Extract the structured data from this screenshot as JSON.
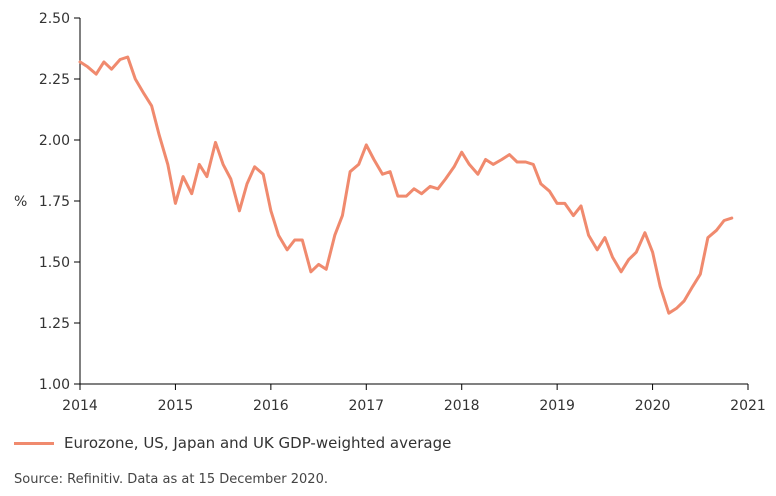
{
  "colors": {
    "series": "#f08a6e",
    "axis": "#000000",
    "text": "#333333"
  },
  "legend": {
    "label": "Eurozone, US, Japan and UK GDP-weighted average"
  },
  "source": "Source: Refinitiv. Data as at 15 December 2020.",
  "chart_data": {
    "type": "line",
    "title": "",
    "xlabel": "",
    "ylabel": "%",
    "xlim": [
      2014,
      2021
    ],
    "ylim": [
      1.0,
      2.5
    ],
    "grid": false,
    "xticks": [
      "2014",
      "2015",
      "2016",
      "2017",
      "2018",
      "2019",
      "2020",
      "2021"
    ],
    "yticks": [
      "1.00",
      "1.25",
      "1.50",
      "1.75",
      "2.00",
      "2.25",
      "2.50"
    ],
    "series": [
      {
        "name": "Eurozone, US, Japan and UK GDP-weighted average",
        "x": [
          2014.0,
          2014.08,
          2014.17,
          2014.25,
          2014.33,
          2014.42,
          2014.5,
          2014.58,
          2014.67,
          2014.75,
          2014.83,
          2014.92,
          2015.0,
          2015.08,
          2015.17,
          2015.25,
          2015.33,
          2015.42,
          2015.5,
          2015.58,
          2015.67,
          2015.75,
          2015.83,
          2015.92,
          2016.0,
          2016.08,
          2016.17,
          2016.25,
          2016.33,
          2016.42,
          2016.5,
          2016.58,
          2016.67,
          2016.75,
          2016.83,
          2016.92,
          2017.0,
          2017.08,
          2017.17,
          2017.25,
          2017.33,
          2017.42,
          2017.5,
          2017.58,
          2017.67,
          2017.75,
          2017.83,
          2017.92,
          2018.0,
          2018.08,
          2018.17,
          2018.25,
          2018.33,
          2018.42,
          2018.5,
          2018.58,
          2018.67,
          2018.75,
          2018.83,
          2018.92,
          2019.0,
          2019.08,
          2019.17,
          2019.25,
          2019.33,
          2019.42,
          2019.5,
          2019.58,
          2019.67,
          2019.75,
          2019.83,
          2019.92,
          2020.0,
          2020.08,
          2020.17,
          2020.25,
          2020.33,
          2020.42,
          2020.5,
          2020.58,
          2020.67,
          2020.75,
          2020.83
        ],
        "values": [
          2.32,
          2.3,
          2.27,
          2.32,
          2.29,
          2.33,
          2.34,
          2.25,
          2.19,
          2.14,
          2.02,
          1.9,
          1.74,
          1.85,
          1.78,
          1.9,
          1.85,
          1.99,
          1.9,
          1.84,
          1.71,
          1.82,
          1.89,
          1.86,
          1.71,
          1.61,
          1.55,
          1.59,
          1.59,
          1.46,
          1.49,
          1.47,
          1.61,
          1.69,
          1.87,
          1.9,
          1.98,
          1.92,
          1.86,
          1.87,
          1.77,
          1.77,
          1.8,
          1.78,
          1.81,
          1.8,
          1.84,
          1.89,
          1.95,
          1.9,
          1.86,
          1.92,
          1.9,
          1.92,
          1.94,
          1.91,
          1.91,
          1.9,
          1.82,
          1.79,
          1.74,
          1.74,
          1.69,
          1.73,
          1.61,
          1.55,
          1.6,
          1.52,
          1.46,
          1.51,
          1.54,
          1.62,
          1.54,
          1.4,
          1.29,
          1.31,
          1.34,
          1.4,
          1.45,
          1.6,
          1.63,
          1.67,
          1.68
        ]
      }
    ]
  }
}
